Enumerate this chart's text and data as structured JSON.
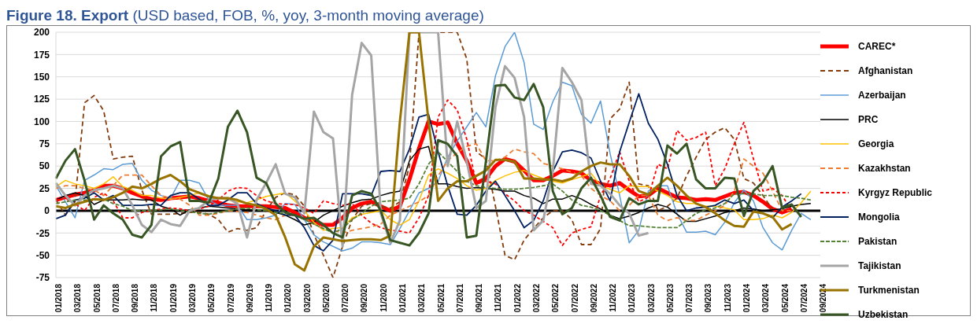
{
  "chart_data": {
    "type": "line",
    "title": "Figure 18. Export",
    "subtitle": "(USD based, FOB, %, yoy, 3-month moving average)",
    "categories": [
      "01/2018",
      null,
      "03/2018",
      null,
      "05/2018",
      null,
      "07/2018",
      null,
      "09/2018",
      null,
      "11/2018",
      null,
      "01/2019",
      null,
      "03/2019",
      null,
      "05/2019",
      null,
      "07/2019",
      null,
      "09/2019",
      null,
      "11/2019",
      null,
      "01/2020",
      null,
      "03/2020",
      null,
      "05/2020",
      null,
      "07/2020",
      null,
      "09/2020",
      null,
      "11/2020",
      null,
      "01/2021",
      null,
      "03/2021",
      null,
      "05/2021",
      null,
      "07/2021",
      null,
      "09/2021",
      null,
      "11/2021",
      null,
      "01/2022",
      null,
      "03/2022",
      null,
      "05/2022",
      null,
      "07/2022",
      null,
      "09/2022",
      null,
      "11/2022",
      null,
      "01/2023",
      null,
      "03/2023",
      null,
      "05/2023",
      null,
      "07/2023",
      null,
      "09/2023",
      null,
      "11/2023",
      null,
      "01/2024",
      null,
      "03/2024",
      null,
      "05/2024",
      null,
      "07/2024",
      null,
      "09/2024"
    ],
    "series": [
      {
        "name": "CAREC*",
        "color": "#ff0000",
        "line_style": "solid",
        "values": [
          12,
          15,
          18,
          20,
          23,
          28,
          28,
          25,
          20,
          16,
          13,
          12,
          14,
          15,
          16,
          14,
          11,
          9,
          6,
          5,
          5,
          5,
          5,
          4,
          3,
          -2,
          -8,
          -12,
          -16,
          -16,
          -8,
          3,
          8,
          10,
          5,
          0,
          5,
          35,
          70,
          100,
          97,
          99,
          75,
          56,
          31,
          36,
          50,
          58,
          55,
          45,
          34,
          34,
          39,
          45,
          44,
          42,
          34,
          30,
          28,
          31,
          23,
          16,
          17,
          25,
          20,
          15,
          14,
          12,
          13,
          12,
          16,
          20,
          21,
          17,
          10,
          2,
          -2,
          2,
          null,
          null,
          null
        ]
      },
      {
        "name": "Afghanistan",
        "color": "#843c0c",
        "line_style": "dashed",
        "values": [
          12,
          -5,
          10,
          121,
          129,
          112,
          58,
          60,
          61,
          23,
          -4,
          -4,
          -4,
          -3,
          -2,
          -2,
          -4,
          -10,
          -24,
          -20,
          -22,
          -19,
          0,
          15,
          20,
          18,
          5,
          -27,
          -50,
          -75,
          -40,
          -10,
          5,
          8,
          5,
          3,
          10,
          50,
          200,
          200,
          200,
          200,
          200,
          170,
          66,
          58,
          5,
          -50,
          -55,
          -33,
          -20,
          -8,
          0,
          0,
          -10,
          -38,
          -38,
          -20,
          103,
          114,
          144,
          30,
          28,
          0,
          5,
          14,
          39,
          60,
          80,
          88,
          93,
          80,
          36,
          31,
          17,
          1,
          0,
          null,
          null,
          null,
          null
        ]
      },
      {
        "name": "Azerbaijan",
        "color": "#5b9bd5",
        "line_style": "solid",
        "values": [
          28,
          10,
          -8,
          34,
          40,
          47,
          46,
          52,
          53,
          34,
          23,
          17,
          14,
          34,
          34,
          31,
          12,
          6,
          6,
          6,
          -10,
          -10,
          -8,
          -5,
          8,
          7,
          -10,
          -27,
          -35,
          -40,
          -45,
          -42,
          -35,
          -35,
          -36,
          -38,
          -20,
          0,
          20,
          25,
          33,
          60,
          78,
          94,
          110,
          94,
          151,
          184,
          200,
          166,
          97,
          91,
          122,
          144,
          140,
          108,
          98,
          123,
          64,
          17,
          -36,
          -22,
          22,
          28,
          28,
          -3,
          -24,
          -24,
          -23,
          -27,
          -13,
          9,
          23,
          11,
          -19,
          -36,
          -44,
          -22,
          -3,
          -10,
          null
        ]
      },
      {
        "name": "PRC",
        "color": "#000000",
        "line_style": "solid",
        "values": [
          12,
          17,
          20,
          17,
          7,
          12,
          12,
          12,
          13,
          12,
          12,
          5,
          2,
          -5,
          1,
          3,
          5,
          4,
          3,
          2,
          1,
          1,
          0,
          -2,
          -5,
          -10,
          -16,
          -13,
          -5,
          0,
          5,
          9,
          12,
          13,
          17,
          20,
          22,
          56,
          69,
          72,
          30,
          30,
          27,
          25,
          26,
          25,
          24,
          22,
          22,
          17,
          14,
          8,
          13,
          13,
          17,
          13,
          7,
          2,
          -5,
          -9,
          -6,
          -2,
          3,
          7,
          4,
          -4,
          -12,
          -12,
          -9,
          -6,
          -2,
          0,
          3,
          2,
          0,
          1,
          2,
          5,
          7,
          8,
          null
        ]
      },
      {
        "name": "Georgia",
        "color": "#ffc000",
        "line_style": "solid",
        "values": [
          27,
          34,
          30,
          28,
          25,
          30,
          38,
          27,
          23,
          17,
          17,
          14,
          13,
          15,
          17,
          20,
          17,
          14,
          12,
          10,
          9,
          12,
          16,
          18,
          20,
          11,
          0,
          -13,
          -22,
          -20,
          -19,
          -8,
          -4,
          -2,
          0,
          -10,
          -16,
          -10,
          11,
          40,
          47,
          42,
          36,
          28,
          23,
          25,
          34,
          39,
          43,
          45,
          40,
          36,
          33,
          31,
          35,
          38,
          42,
          28,
          24,
          20,
          28,
          27,
          27,
          22,
          17,
          10,
          8,
          8,
          5,
          5,
          3,
          1,
          -10,
          -10,
          -9,
          -5,
          -8,
          -2,
          9,
          22,
          null
        ]
      },
      {
        "name": "Kazakhstan",
        "color": "#ed7d31",
        "line_style": "dashed",
        "values": [
          25,
          28,
          28,
          25,
          23,
          17,
          28,
          40,
          40,
          40,
          28,
          17,
          14,
          13,
          6,
          -5,
          -5,
          -3,
          0,
          -1,
          -2,
          -5,
          -8,
          -10,
          -5,
          -5,
          -8,
          -15,
          -20,
          -22,
          -25,
          -22,
          -20,
          -18,
          -15,
          -5,
          0,
          5,
          10,
          17,
          39,
          56,
          65,
          72,
          75,
          56,
          56,
          60,
          69,
          66,
          64,
          53,
          50,
          47,
          43,
          39,
          25,
          17,
          11,
          0,
          6,
          17,
          17,
          -5,
          -11,
          -8,
          -11,
          -11,
          -5,
          0,
          6,
          22,
          58,
          50,
          42,
          22,
          0,
          0,
          null,
          null,
          null
        ]
      },
      {
        "name": "Kyrgyz Republic",
        "color": "#ff0000",
        "line_style": "dashed",
        "values": [
          12,
          14,
          8,
          0,
          15,
          20,
          11,
          -8,
          -8,
          -2,
          0,
          2,
          3,
          2,
          0,
          2,
          5,
          12,
          22,
          26,
          25,
          17,
          11,
          8,
          7,
          7,
          3,
          -3,
          11,
          8,
          6,
          8,
          -5,
          -14,
          -19,
          -22,
          -23,
          -25,
          -8,
          17,
          105,
          124,
          113,
          80,
          30,
          33,
          30,
          19,
          11,
          0,
          -5,
          -12,
          -19,
          -39,
          -25,
          -21,
          -18,
          17,
          36,
          66,
          33,
          10,
          15,
          52,
          47,
          90,
          79,
          82,
          88,
          28,
          47,
          75,
          99,
          58,
          22,
          25,
          17,
          0,
          null,
          null,
          null
        ]
      },
      {
        "name": "Mongolia",
        "color": "#002060",
        "line_style": "solid",
        "values": [
          -9,
          -5,
          12,
          14,
          20,
          12,
          17,
          6,
          6,
          6,
          7,
          6,
          17,
          20,
          20,
          13,
          6,
          6,
          12,
          20,
          20,
          8,
          3,
          0,
          -5,
          -5,
          -19,
          -39,
          -45,
          -33,
          19,
          19,
          19,
          17,
          44,
          45,
          44,
          69,
          105,
          108,
          66,
          28,
          -4,
          -5,
          6,
          22,
          33,
          17,
          0,
          -19,
          -11,
          11,
          44,
          66,
          68,
          65,
          59,
          33,
          11,
          66,
          99,
          131,
          98,
          80,
          52,
          17,
          0,
          3,
          4,
          6,
          12,
          8,
          12,
          0,
          -3,
          -8,
          4,
          11,
          19,
          null,
          null
        ]
      },
      {
        "name": "Pakistan",
        "color": "#548235",
        "line_style": "dashed",
        "values": [
          8,
          10,
          12,
          12,
          12,
          13,
          8,
          5,
          0,
          0,
          0,
          1,
          2,
          0,
          -1,
          -3,
          -4,
          -2,
          0,
          2,
          3,
          1,
          0,
          -2,
          -3,
          -5,
          -10,
          -15,
          -20,
          -25,
          -20,
          -10,
          -3,
          5,
          10,
          11,
          12,
          14,
          30,
          52,
          66,
          55,
          44,
          33,
          28,
          26,
          25,
          24,
          24,
          25,
          26,
          28,
          30,
          22,
          12,
          6,
          4,
          0,
          -5,
          -11,
          -17,
          -17,
          -18,
          -19,
          -19,
          -19,
          -11,
          -3,
          1,
          3,
          8,
          19,
          19,
          19,
          17,
          17,
          17,
          15,
          14,
          12,
          null
        ]
      },
      {
        "name": "Tajikistan",
        "color": "#a5a5a5",
        "line_style": "solid",
        "values": [
          31,
          17,
          6,
          17,
          23,
          25,
          28,
          25,
          6,
          -16,
          -24,
          -10,
          -15,
          -17,
          0,
          3,
          12,
          14,
          14,
          8,
          -30,
          12,
          31,
          52,
          19,
          15,
          -3,
          111,
          88,
          81,
          -40,
          130,
          188,
          174,
          -3,
          -36,
          -11,
          200,
          200,
          200,
          200,
          50,
          100,
          55,
          3,
          11,
          116,
          162,
          149,
          105,
          -22,
          -11,
          44,
          160,
          144,
          124,
          30,
          28,
          19,
          6,
          -3,
          -28,
          -25,
          null,
          null,
          null,
          null,
          null,
          null,
          null,
          null,
          null,
          null,
          null,
          null,
          null,
          null,
          null,
          null,
          null,
          null
        ]
      },
      {
        "name": "Turkmenistan",
        "color": "#997300",
        "line_style": "solid",
        "values": [
          5,
          3,
          7,
          10,
          13,
          12,
          15,
          20,
          27,
          25,
          30,
          36,
          40,
          33,
          24,
          20,
          16,
          14,
          14,
          12,
          8,
          6,
          2,
          -5,
          -30,
          -60,
          -67,
          -40,
          -30,
          -32,
          -34,
          -33,
          -32,
          -32,
          -33,
          -28,
          100,
          200,
          200,
          100,
          11,
          25,
          33,
          33,
          39,
          45,
          57,
          57,
          55,
          36,
          36,
          35,
          35,
          33,
          36,
          44,
          50,
          54,
          52,
          52,
          39,
          22,
          18,
          28,
          37,
          28,
          17,
          8,
          4,
          -3,
          -11,
          -17,
          -18,
          -1,
          -3,
          -7,
          -21,
          -15,
          null,
          null,
          null
        ]
      },
      {
        "name": "Uzbekistan",
        "color": "#375623",
        "line_style": "solid",
        "values": [
          36,
          56,
          69,
          34,
          -10,
          6,
          -3,
          -10,
          -27,
          -30,
          -16,
          61,
          72,
          77,
          11,
          11,
          9,
          36,
          94,
          112,
          88,
          37,
          31,
          8,
          -2,
          -5,
          -9,
          -8,
          -16,
          -25,
          -30,
          17,
          22,
          19,
          0,
          -33,
          -36,
          -39,
          -25,
          -3,
          79,
          75,
          61,
          -30,
          -28,
          55,
          140,
          141,
          127,
          124,
          142,
          116,
          22,
          -4,
          3,
          25,
          37,
          17,
          -7,
          -11,
          14,
          7,
          11,
          11,
          73,
          64,
          75,
          35,
          25,
          25,
          37,
          36,
          -6,
          22,
          32,
          50,
          3,
          7,
          -7,
          null,
          null
        ]
      }
    ],
    "ylim": [
      -75,
      200
    ],
    "yticks": [
      -75,
      -50,
      -25,
      0,
      25,
      50,
      75,
      100,
      125,
      150,
      175,
      200
    ],
    "grid": "y",
    "legend": "right",
    "ref_lines": [
      {
        "axis": "y",
        "value": 0,
        "color": "#000000"
      }
    ]
  }
}
